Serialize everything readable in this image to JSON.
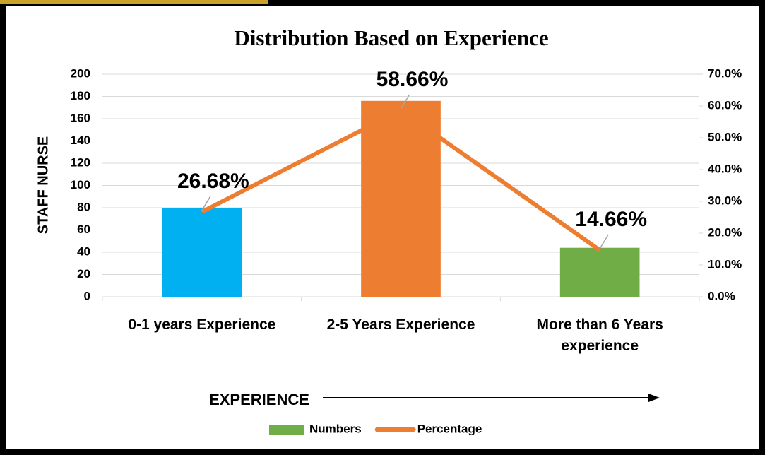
{
  "chart_data": {
    "type": "bar-line",
    "title": "Distribution Based on Experience",
    "x_label": "EXPERIENCE",
    "y_label": "STAFF NURSE",
    "categories": [
      "0-1 years Experience",
      "2-5 Years Experience",
      "More than 6 Years experience"
    ],
    "series": [
      {
        "name": "Numbers",
        "type": "bar",
        "color": "#70ad47",
        "colors": [
          "#00b0f0",
          "#ed7d31",
          "#70ad47"
        ],
        "values": [
          80,
          176,
          44
        ]
      },
      {
        "name": "Percentage",
        "type": "line",
        "axis": "y2",
        "color": "#ed7d31",
        "values": [
          26.68,
          58.66,
          14.66
        ],
        "value_labels": [
          "26.68%",
          "58.66%",
          "14.66%"
        ]
      }
    ],
    "ylim": [
      0,
      200
    ],
    "yticks": [
      0,
      20,
      40,
      60,
      80,
      100,
      120,
      140,
      160,
      180,
      200
    ],
    "y2lim": [
      0,
      70
    ],
    "y2ticks": [
      {
        "value": 0,
        "label": "0.0%"
      },
      {
        "value": 10,
        "label": "10.0%"
      },
      {
        "value": 20,
        "label": "20.0%"
      },
      {
        "value": 30,
        "label": "30.0%"
      },
      {
        "value": 40,
        "label": "40.0%"
      },
      {
        "value": 50,
        "label": "50.0%"
      },
      {
        "value": 60,
        "label": "60.0%"
      },
      {
        "value": 70,
        "label": "70.0%"
      }
    ],
    "grid": true,
    "legend": "bottom"
  }
}
